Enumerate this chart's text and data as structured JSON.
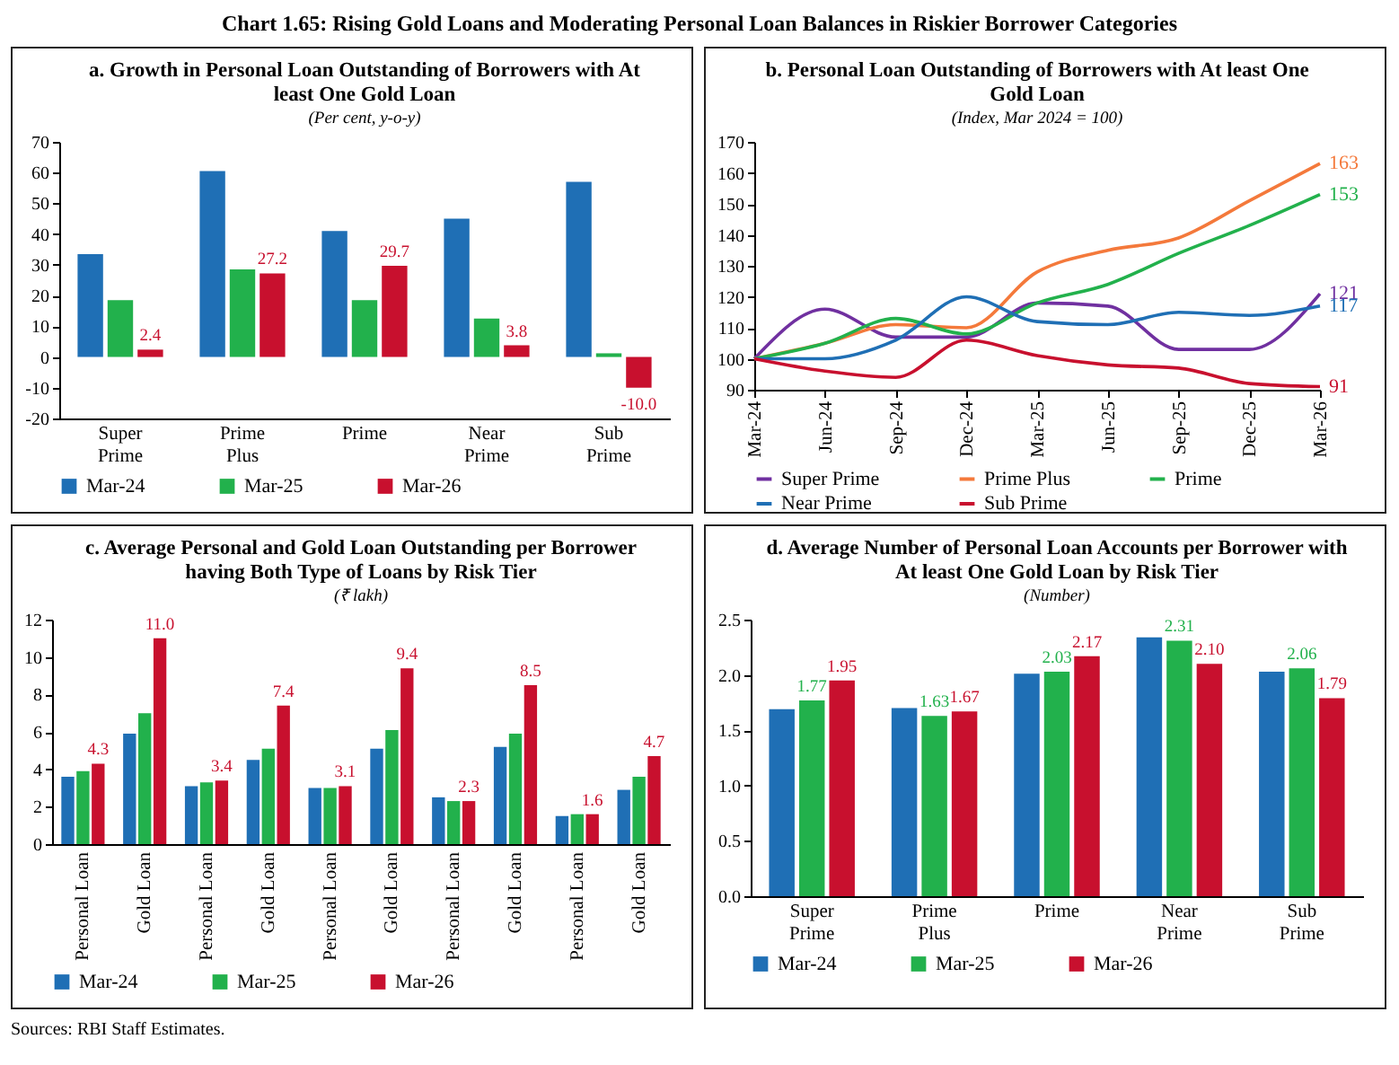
{
  "chart_data": [
    {
      "type": "other",
      "title": "Chart 1.65: Rising Gold Loans and Moderating Personal Loan Balances in Riskier Borrower Categories",
      "annotations": [
        "Sources: RBI Staff Estimates."
      ]
    },
    {
      "type": "bar",
      "title": "a. Growth in Personal Loan Outstanding of Borrowers with At least One Gold Loan",
      "subtitle": "(Per cent, y-o-y)",
      "categories": [
        "Super Prime",
        "Prime Plus",
        "Prime",
        "Near Prime",
        "Sub Prime"
      ],
      "ylim": [
        -20,
        70
      ],
      "yticks": [
        -20,
        -10,
        0,
        10,
        20,
        30,
        40,
        50,
        60,
        70
      ],
      "legend": "bottom",
      "series": [
        {
          "name": "Mar-24",
          "color": "#1f6fb5",
          "values": [
            33.5,
            60.5,
            41,
            45,
            57
          ]
        },
        {
          "name": "Mar-25",
          "color": "#22b14c",
          "values": [
            18.5,
            28.5,
            18.5,
            12.5,
            1.2
          ]
        },
        {
          "name": "Mar-26",
          "color": "#c8102e",
          "values": [
            2.4,
            27.2,
            29.7,
            3.8,
            -10.0
          ],
          "value_labels": [
            "2.4",
            "27.2",
            "29.7",
            "3.8",
            "-10.0"
          ]
        }
      ]
    },
    {
      "type": "line",
      "title": "b. Personal Loan Outstanding of Borrowers with At least One Gold Loan",
      "subtitle": "(Index, Mar 2024 = 100)",
      "categories": [
        "Mar-24",
        "Jun-24",
        "Sep-24",
        "Dec-24",
        "Mar-25",
        "Jun-25",
        "Sep-25",
        "Dec-25",
        "Mar-26"
      ],
      "ylim": [
        90,
        170
      ],
      "yticks": [
        90,
        100,
        110,
        120,
        130,
        140,
        150,
        160,
        170
      ],
      "legend": "bottom",
      "series": [
        {
          "name": "Super Prime",
          "color": "#7030a0",
          "values": [
            100,
            116,
            107,
            107,
            118,
            117,
            103,
            103,
            121
          ],
          "value_labels": [
            null,
            null,
            null,
            null,
            null,
            null,
            null,
            null,
            "121"
          ]
        },
        {
          "name": "Prime Plus",
          "color": "#f4793b",
          "values": [
            100,
            105,
            111,
            110,
            128,
            135,
            139,
            151,
            163
          ],
          "value_labels": [
            null,
            null,
            null,
            null,
            null,
            null,
            null,
            null,
            "163"
          ]
        },
        {
          "name": "Prime",
          "color": "#22b14c",
          "values": [
            100,
            105,
            113,
            108,
            118,
            124,
            134,
            143,
            153
          ],
          "value_labels": [
            null,
            null,
            null,
            null,
            null,
            null,
            null,
            null,
            "153"
          ]
        },
        {
          "name": "Near Prime",
          "color": "#1f6fb5",
          "values": [
            100,
            100,
            106,
            120,
            112,
            111,
            115,
            114,
            117
          ],
          "value_labels": [
            null,
            null,
            null,
            null,
            null,
            null,
            null,
            null,
            "117"
          ]
        },
        {
          "name": "Sub Prime",
          "color": "#c8102e",
          "values": [
            100,
            96,
            94,
            106,
            101,
            98,
            97,
            92,
            91
          ],
          "value_labels": [
            null,
            null,
            null,
            null,
            null,
            null,
            null,
            null,
            "91"
          ]
        }
      ]
    },
    {
      "type": "bar",
      "title": "c. Average Personal and Gold Loan Outstanding per Borrower having Both Type of Loans by Risk Tier",
      "subtitle": "(₹ lakh)",
      "categories": [
        "Personal Loan",
        "Gold Loan",
        "Personal Loan",
        "Gold Loan",
        "Personal Loan",
        "Gold Loan",
        "Personal Loan",
        "Gold Loan",
        "Personal Loan",
        "Gold Loan"
      ],
      "ylim": [
        0,
        12
      ],
      "yticks": [
        0,
        2,
        4,
        6,
        8,
        10,
        12
      ],
      "legend": "bottom",
      "series": [
        {
          "name": "Mar-24",
          "color": "#1f6fb5",
          "values": [
            3.6,
            5.9,
            3.1,
            4.5,
            3.0,
            5.1,
            2.5,
            5.2,
            1.5,
            2.9
          ]
        },
        {
          "name": "Mar-25",
          "color": "#22b14c",
          "values": [
            3.9,
            7.0,
            3.3,
            5.1,
            3.0,
            6.1,
            2.3,
            5.9,
            1.6,
            3.6
          ]
        },
        {
          "name": "Mar-26",
          "color": "#c8102e",
          "values": [
            4.3,
            11.0,
            3.4,
            7.4,
            3.1,
            9.4,
            2.3,
            8.5,
            1.6,
            4.7
          ],
          "value_labels": [
            "4.3",
            "11.0",
            "3.4",
            "7.4",
            "3.1",
            "9.4",
            "2.3",
            "8.5",
            "1.6",
            "4.7"
          ]
        }
      ]
    },
    {
      "type": "bar",
      "title": "d. Average Number of Personal Loan Accounts per Borrower with At least One Gold Loan by Risk Tier",
      "subtitle": "(Number)",
      "categories": [
        "Super Prime",
        "Prime Plus",
        "Prime",
        "Near Prime",
        "Sub Prime"
      ],
      "ylim": [
        0,
        2.5
      ],
      "yticks": [
        {
          "value": 0,
          "label": "0.0"
        },
        {
          "value": 0.5,
          "label": "0.5"
        },
        {
          "value": 1,
          "label": "1.0"
        },
        {
          "value": 1.5,
          "label": "1.5"
        },
        {
          "value": 2,
          "label": "2.0"
        },
        {
          "value": 2.5,
          "label": "2.5"
        }
      ],
      "legend": "bottom",
      "series": [
        {
          "name": "Mar-24",
          "color": "#1f6fb5",
          "values": [
            1.69,
            1.7,
            2.01,
            2.34,
            2.03
          ]
        },
        {
          "name": "Mar-25",
          "color": "#22b14c",
          "values": [
            1.77,
            1.63,
            2.03,
            2.31,
            2.06
          ],
          "value_labels": [
            "1.77",
            "1.63",
            "2.03",
            "2.31",
            "2.06"
          ]
        },
        {
          "name": "Mar-26",
          "color": "#c8102e",
          "values": [
            1.95,
            1.67,
            2.17,
            2.1,
            1.79
          ],
          "value_labels": [
            "1.95",
            "1.67",
            "2.17",
            "2.10",
            "1.79"
          ]
        }
      ]
    }
  ]
}
